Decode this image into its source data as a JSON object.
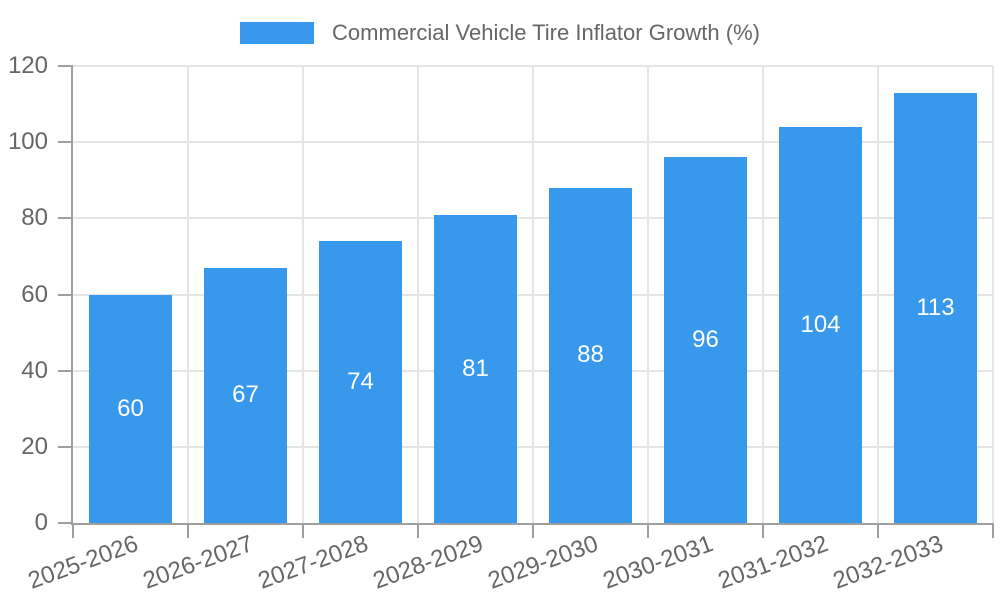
{
  "chart_data": {
    "type": "bar",
    "title": "Commercial Vehicle Tire Inflator Growth (%)",
    "categories": [
      "2025-2026",
      "2026-2027",
      "2027-2028",
      "2028-2029",
      "2029-2030",
      "2030-2031",
      "2031-2032",
      "2032-2033"
    ],
    "series": [
      {
        "name": "Commercial Vehicle Tire Inflator Growth (%)",
        "values": [
          60,
          67,
          74,
          81,
          88,
          96,
          104,
          113
        ]
      }
    ],
    "xlabel": "",
    "ylabel": "",
    "ylim": [
      0,
      120
    ],
    "yticks": [
      0,
      20,
      40,
      60,
      80,
      100,
      120
    ],
    "grid": true,
    "legend_position": "top",
    "bar_value_labels": [
      60,
      67,
      74,
      81,
      88,
      96,
      104,
      113
    ],
    "colors": {
      "bar": "#3899EC",
      "bar_label_text": "#FFFFFF",
      "axis_text": "#666666",
      "grid_line": "#E5E5E5",
      "axis_line": "#9E9E9E",
      "background": "#FFFFFF"
    }
  }
}
